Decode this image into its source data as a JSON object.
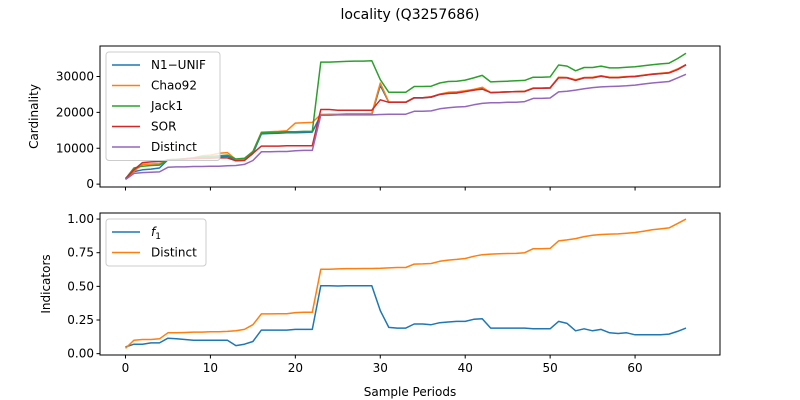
{
  "chart_data": {
    "type": "line",
    "title": "locality (Q3257686)",
    "xlabel": "Sample Periods",
    "x": [
      0,
      1,
      2,
      3,
      4,
      5,
      6,
      7,
      8,
      9,
      10,
      11,
      12,
      13,
      14,
      15,
      16,
      17,
      18,
      19,
      20,
      21,
      22,
      23,
      24,
      25,
      26,
      27,
      28,
      29,
      30,
      31,
      32,
      33,
      34,
      35,
      36,
      37,
      38,
      39,
      40,
      41,
      42,
      43,
      44,
      45,
      46,
      47,
      48,
      49,
      50,
      51,
      52,
      53,
      54,
      55,
      56,
      57,
      58,
      59,
      60,
      61,
      62,
      63,
      64,
      65,
      66
    ],
    "xlim": [
      -3,
      70
    ],
    "xticks": [
      0,
      10,
      20,
      30,
      40,
      50,
      60
    ],
    "panels": [
      {
        "ylabel": "Cardinality",
        "ylim": [
          -800,
          38500
        ],
        "yticks": [
          0,
          10000,
          20000,
          30000
        ],
        "ytick_labels": [
          "0",
          "10000",
          "20000",
          "30000"
        ],
        "legend_position": "upper-left",
        "series": [
          {
            "name": "N1−UNIF",
            "color": "#1f77b4",
            "values": [
              1500,
              3500,
              4000,
              4200,
              4500,
              6800,
              6800,
              7000,
              7200,
              7300,
              7400,
              7600,
              7800,
              6500,
              6700,
              8500,
              14000,
              14100,
              14200,
              14300,
              14300,
              14400,
              14500,
              19300,
              19300,
              19400,
              19400,
              19400,
              19400,
              19400,
              27500,
              22800,
              22800,
              22800,
              24000,
              24000,
              24200,
              25000,
              25300,
              25400,
              25900,
              26200,
              26800,
              25500,
              25600,
              25700,
              25800,
              25900,
              26700,
              26700,
              26800,
              29800,
              29700,
              29000,
              29700,
              29700,
              30100,
              29700,
              29700,
              29900,
              30000,
              30300,
              30600,
              30800,
              31000,
              32000,
              33200
            ]
          },
          {
            "name": "Chao92",
            "color": "#ff7f0e",
            "values": [
              1500,
              3600,
              5500,
              5600,
              5700,
              6800,
              6900,
              7100,
              7300,
              7900,
              8100,
              8600,
              8800,
              6900,
              7000,
              9000,
              14500,
              14600,
              14700,
              14900,
              17000,
              17100,
              17200,
              19400,
              19500,
              19500,
              19600,
              19600,
              19600,
              19700,
              28200,
              22900,
              22900,
              22900,
              24100,
              24100,
              24300,
              25100,
              25600,
              25700,
              26000,
              26400,
              27000,
              25500,
              25600,
              25700,
              25800,
              25900,
              26800,
              26800,
              26900,
              29800,
              29700,
              29100,
              29700,
              29800,
              30200,
              29800,
              29800,
              30000,
              30100,
              30400,
              30700,
              30900,
              31100,
              32100,
              33300
            ]
          },
          {
            "name": "Jack1",
            "color": "#2ca02c",
            "values": [
              1500,
              4500,
              5000,
              5200,
              5300,
              6800,
              6900,
              7100,
              7300,
              7600,
              7700,
              7900,
              8100,
              7000,
              7200,
              9100,
              14300,
              14400,
              14500,
              14600,
              14600,
              14700,
              14700,
              34000,
              34000,
              34100,
              34200,
              34300,
              34300,
              34400,
              29100,
              25600,
              25600,
              25600,
              27200,
              27200,
              27300,
              28200,
              28600,
              28700,
              29000,
              29600,
              30300,
              28500,
              28600,
              28700,
              28800,
              28900,
              29800,
              29800,
              29900,
              33200,
              32900,
              31600,
              32500,
              32500,
              32900,
              32400,
              32400,
              32600,
              32700,
              33000,
              33300,
              33500,
              33700,
              35000,
              36500
            ]
          },
          {
            "name": "SOR",
            "color": "#d62728",
            "values": [
              1500,
              4000,
              6000,
              6200,
              6300,
              6700,
              6800,
              7000,
              7100,
              7200,
              7200,
              7300,
              7300,
              6500,
              6600,
              8600,
              10600,
              10600,
              10600,
              10700,
              10700,
              10700,
              10700,
              20800,
              20800,
              20600,
              20600,
              20600,
              20600,
              20600,
              23500,
              22800,
              22800,
              22800,
              24100,
              24100,
              24300,
              25000,
              25300,
              25400,
              25800,
              26200,
              26500,
              25500,
              25600,
              25700,
              25800,
              25800,
              26700,
              26700,
              26800,
              29600,
              29600,
              28900,
              29600,
              29600,
              30100,
              29700,
              29700,
              29900,
              30000,
              30300,
              30600,
              30800,
              31000,
              31900,
              33300
            ]
          },
          {
            "name": "Distinct",
            "color": "#9467bd",
            "values": [
              1300,
              3000,
              3200,
              3300,
              3400,
              4700,
              4800,
              4800,
              4900,
              4900,
              5000,
              5000,
              5100,
              5200,
              5500,
              6600,
              9000,
              9000,
              9100,
              9100,
              9300,
              9400,
              9400,
              19200,
              19200,
              19300,
              19300,
              19300,
              19300,
              19300,
              19400,
              19500,
              19500,
              19500,
              20300,
              20300,
              20400,
              21000,
              21300,
              21500,
              21600,
              22100,
              22500,
              22700,
              22700,
              22800,
              22800,
              23000,
              23900,
              23900,
              24000,
              25700,
              25900,
              26200,
              26600,
              26900,
              27100,
              27200,
              27300,
              27400,
              27600,
              27900,
              28200,
              28400,
              28600,
              29600,
              30600
            ]
          }
        ]
      },
      {
        "ylabel": "Indicators",
        "ylim": [
          -0.01,
          1.045
        ],
        "yticks": [
          0,
          0.25,
          0.5,
          0.75,
          1.0
        ],
        "ytick_labels": [
          "0.00",
          "0.25",
          "0.50",
          "0.75",
          "1.00"
        ],
        "legend_position": "upper-left",
        "series": [
          {
            "name": "f1",
            "color": "#1f77b4",
            "values": [
              0.05,
              0.07,
              0.07,
              0.08,
              0.08,
              0.115,
              0.11,
              0.105,
              0.1,
              0.1,
              0.1,
              0.1,
              0.1,
              0.06,
              0.07,
              0.09,
              0.175,
              0.175,
              0.175,
              0.175,
              0.18,
              0.18,
              0.18,
              0.505,
              0.505,
              0.503,
              0.505,
              0.505,
              0.505,
              0.505,
              0.32,
              0.195,
              0.19,
              0.19,
              0.22,
              0.22,
              0.215,
              0.23,
              0.235,
              0.24,
              0.24,
              0.255,
              0.26,
              0.19,
              0.19,
              0.19,
              0.19,
              0.19,
              0.185,
              0.185,
              0.185,
              0.24,
              0.225,
              0.17,
              0.185,
              0.17,
              0.18,
              0.155,
              0.15,
              0.155,
              0.14,
              0.14,
              0.14,
              0.14,
              0.145,
              0.165,
              0.19
            ]
          },
          {
            "name": "Distinct",
            "color": "#ff7f0e",
            "values": [
              0.04,
              0.1,
              0.105,
              0.105,
              0.11,
              0.155,
              0.155,
              0.157,
              0.16,
              0.16,
              0.162,
              0.163,
              0.165,
              0.17,
              0.18,
              0.215,
              0.295,
              0.295,
              0.297,
              0.297,
              0.305,
              0.307,
              0.307,
              0.627,
              0.627,
              0.63,
              0.632,
              0.632,
              0.633,
              0.633,
              0.634,
              0.637,
              0.64,
              0.64,
              0.665,
              0.667,
              0.67,
              0.686,
              0.695,
              0.7,
              0.707,
              0.723,
              0.735,
              0.74,
              0.742,
              0.744,
              0.745,
              0.75,
              0.78,
              0.78,
              0.782,
              0.838,
              0.845,
              0.855,
              0.87,
              0.88,
              0.885,
              0.888,
              0.89,
              0.895,
              0.9,
              0.91,
              0.92,
              0.927,
              0.934,
              0.966,
              1.0
            ]
          }
        ]
      }
    ]
  }
}
